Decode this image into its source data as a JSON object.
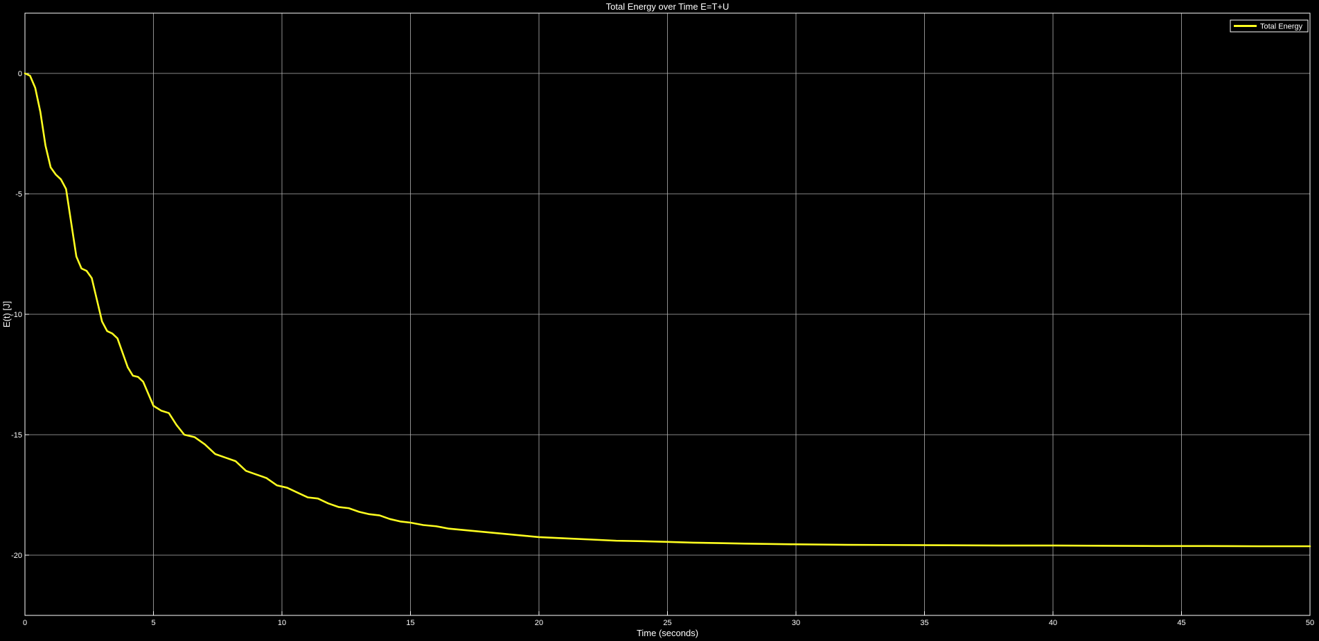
{
  "chart_data": {
    "type": "line",
    "title": "Total Energy over Time E=T+U",
    "xlabel": "Time (seconds)",
    "ylabel": "E(t) [J]",
    "xlim": [
      0,
      50
    ],
    "ylim": [
      -22.5,
      2.5
    ],
    "xticks": [
      0,
      5,
      10,
      15,
      20,
      25,
      30,
      35,
      40,
      45,
      50
    ],
    "yticks": [
      0,
      -5,
      -10,
      -15,
      -20
    ],
    "xtick_labels": [
      "0",
      "5",
      "10",
      "15",
      "20",
      "25",
      "30",
      "35",
      "40",
      "45",
      "50"
    ],
    "ytick_labels": [
      "0",
      "-5",
      "-10",
      "-15",
      "-20"
    ],
    "grid": true,
    "legend": {
      "position": "top-right",
      "entries": [
        "Total Energy"
      ]
    },
    "colors": {
      "background": "#000000",
      "axes": "#ffffff",
      "grid": "#b4b4b4",
      "line": "#ffff20"
    },
    "series": [
      {
        "name": "Total Energy",
        "x": [
          0,
          0.2,
          0.4,
          0.6,
          0.8,
          1.0,
          1.2,
          1.4,
          1.6,
          1.8,
          2.0,
          2.2,
          2.4,
          2.6,
          2.8,
          3.0,
          3.2,
          3.4,
          3.6,
          3.8,
          4.0,
          4.2,
          4.4,
          4.6,
          4.8,
          5.0,
          5.3,
          5.6,
          5.9,
          6.2,
          6.6,
          7.0,
          7.4,
          7.8,
          8.2,
          8.6,
          9.0,
          9.4,
          9.8,
          10.2,
          10.6,
          11.0,
          11.4,
          11.8,
          12.2,
          12.6,
          13.0,
          13.4,
          13.8,
          14.2,
          14.6,
          15.0,
          15.5,
          16.0,
          16.5,
          17.0,
          17.5,
          18.0,
          18.5,
          19.0,
          19.5,
          20.0,
          21.0,
          22.0,
          23.0,
          24.0,
          25.0,
          26.0,
          27.0,
          28.0,
          30.0,
          32.0,
          34.0,
          36.0,
          38.0,
          40.0,
          42.0,
          44.0,
          46.0,
          48.0,
          50.0
        ],
        "values": [
          0,
          -0.1,
          -0.6,
          -1.6,
          -3.0,
          -3.9,
          -4.2,
          -4.4,
          -4.8,
          -6.2,
          -7.6,
          -8.1,
          -8.2,
          -8.5,
          -9.4,
          -10.3,
          -10.7,
          -10.8,
          -11.0,
          -11.6,
          -12.2,
          -12.55,
          -12.6,
          -12.8,
          -13.3,
          -13.8,
          -14.0,
          -14.1,
          -14.6,
          -15.0,
          -15.1,
          -15.4,
          -15.8,
          -15.95,
          -16.1,
          -16.5,
          -16.65,
          -16.8,
          -17.1,
          -17.2,
          -17.4,
          -17.6,
          -17.65,
          -17.85,
          -18.0,
          -18.05,
          -18.2,
          -18.3,
          -18.35,
          -18.5,
          -18.6,
          -18.65,
          -18.75,
          -18.8,
          -18.9,
          -18.95,
          -19.0,
          -19.05,
          -19.1,
          -19.15,
          -19.2,
          -19.25,
          -19.3,
          -19.35,
          -19.4,
          -19.42,
          -19.45,
          -19.48,
          -19.5,
          -19.52,
          -19.55,
          -19.57,
          -19.58,
          -19.59,
          -19.6,
          -19.6,
          -19.61,
          -19.62,
          -19.62,
          -19.63,
          -19.63
        ]
      }
    ]
  }
}
